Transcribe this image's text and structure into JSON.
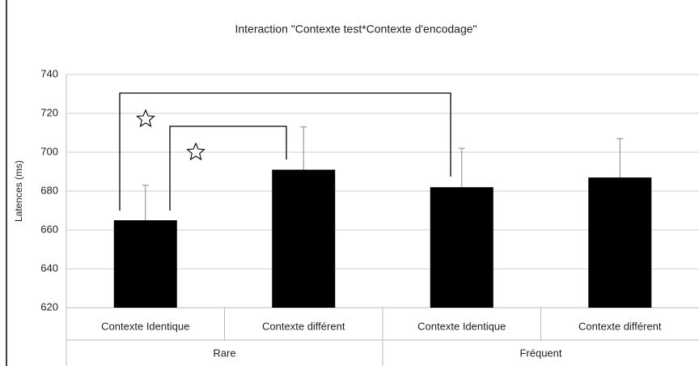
{
  "chart_data": {
    "type": "bar",
    "title": "Interaction \"Contexte test*Contexte d'encodage\"",
    "y_label": "Latences (ms)",
    "groups": [
      {
        "name": "Rare",
        "categories": [
          "Contexte Identique",
          "Contexte différent"
        ],
        "values": [
          665,
          691
        ],
        "errors": [
          18,
          22
        ]
      },
      {
        "name": "Fréquent",
        "categories": [
          "Contexte Identique",
          "Contexte différent"
        ],
        "values": [
          682,
          687
        ],
        "errors": [
          20,
          20
        ]
      }
    ],
    "color": "#000000",
    "ylim": [
      620,
      740
    ],
    "yticks": [
      620,
      640,
      660,
      680,
      700,
      720,
      740
    ],
    "grid": true
  }
}
